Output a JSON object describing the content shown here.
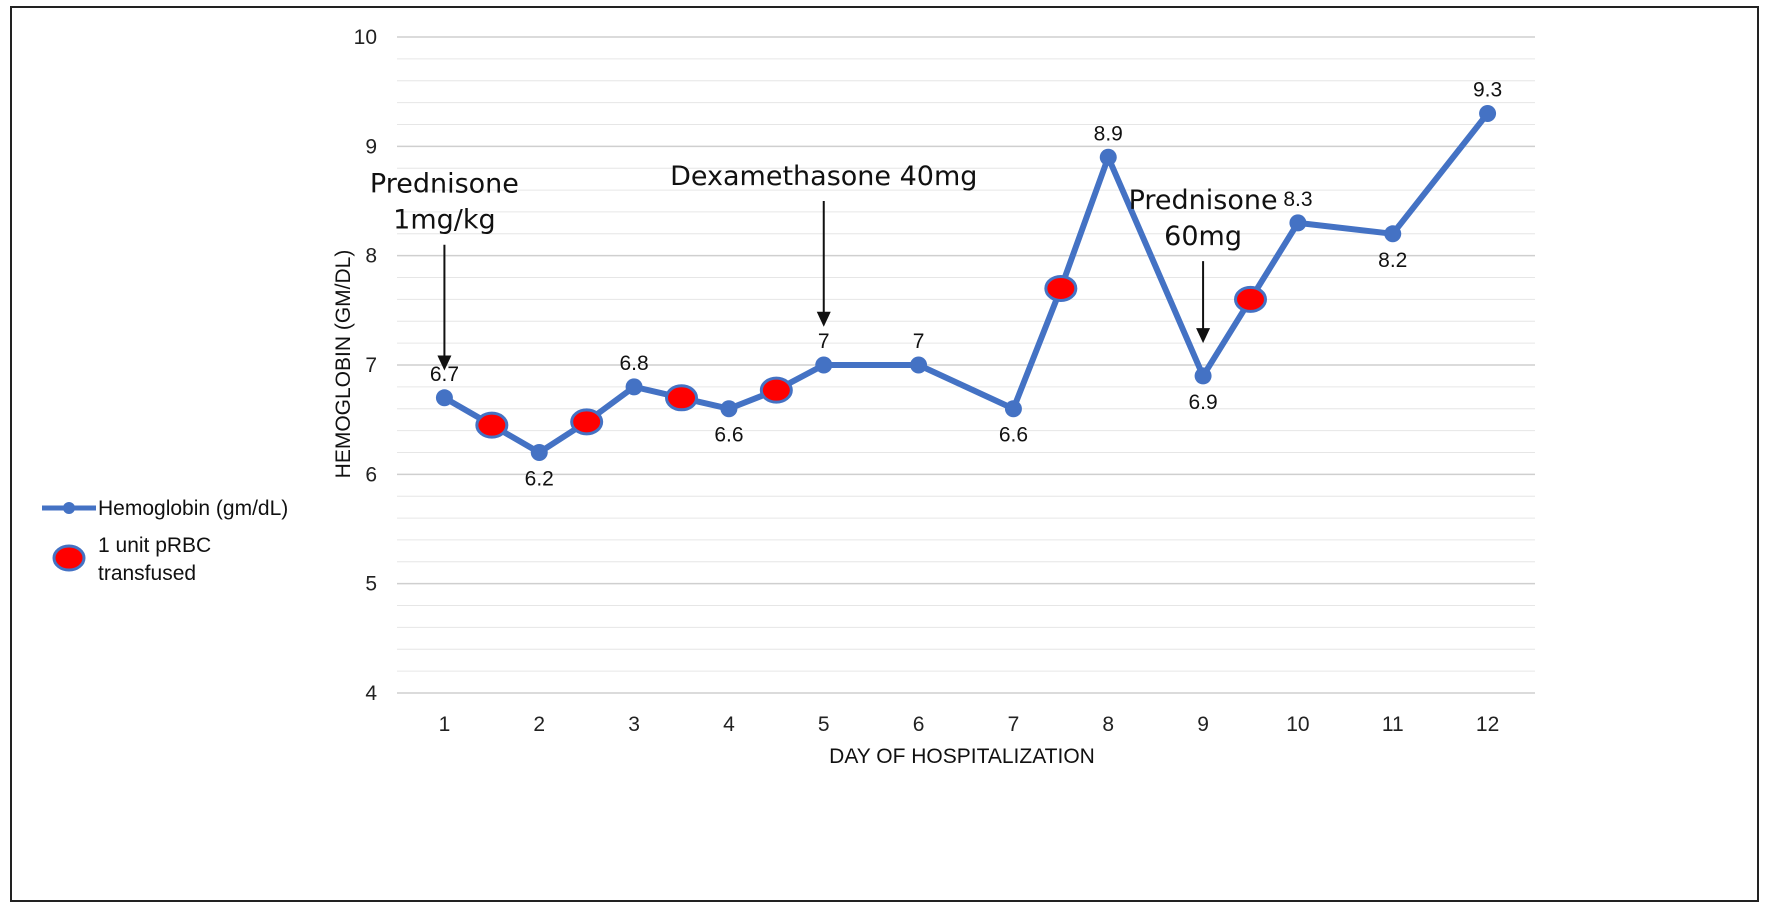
{
  "chart_data": {
    "type": "line",
    "xlabel": "DAY OF HOSPITALIZATION",
    "ylabel": "HEMOGLOBIN (GM/DL)",
    "x": [
      1,
      2,
      3,
      4,
      5,
      6,
      7,
      8,
      9,
      10,
      11,
      12
    ],
    "xlim": [
      0.5,
      12.5
    ],
    "ylim": [
      4,
      10
    ],
    "y_ticks": [
      4,
      5,
      6,
      7,
      8,
      9,
      10
    ],
    "y_minor_step": 0.2,
    "grid": true,
    "legend_position": "left",
    "series": [
      {
        "name": "Hemoglobin (gm/dL)",
        "color": "#4472C4",
        "points": [
          {
            "x": 1,
            "y": 6.7,
            "label": "6.7",
            "label_pos": "above"
          },
          {
            "x": 1.5,
            "y": 6.45,
            "transfusion": true
          },
          {
            "x": 2,
            "y": 6.2,
            "label": "6.2",
            "label_pos": "below"
          },
          {
            "x": 2.5,
            "y": 6.48,
            "transfusion": true
          },
          {
            "x": 3,
            "y": 6.8,
            "label": "6.8",
            "label_pos": "above"
          },
          {
            "x": 3.5,
            "y": 6.7,
            "transfusion": true
          },
          {
            "x": 4,
            "y": 6.6,
            "label": "6.6",
            "label_pos": "below"
          },
          {
            "x": 4.5,
            "y": 6.77,
            "transfusion": true
          },
          {
            "x": 5,
            "y": 7.0,
            "label": "7",
            "label_pos": "above"
          },
          {
            "x": 6,
            "y": 7.0,
            "label": "7",
            "label_pos": "above"
          },
          {
            "x": 7,
            "y": 6.6,
            "label": "6.6",
            "label_pos": "below"
          },
          {
            "x": 7.5,
            "y": 7.7,
            "transfusion": true
          },
          {
            "x": 8,
            "y": 8.9,
            "label": "8.9",
            "label_pos": "above"
          },
          {
            "x": 9,
            "y": 6.9,
            "label": "6.9",
            "label_pos": "below"
          },
          {
            "x": 9.5,
            "y": 7.6,
            "transfusion": true
          },
          {
            "x": 10,
            "y": 8.3,
            "label": "8.3",
            "label_pos": "above"
          },
          {
            "x": 11,
            "y": 8.2,
            "label": "8.2",
            "label_pos": "below"
          },
          {
            "x": 12,
            "y": 9.3,
            "label": "9.3",
            "label_pos": "above"
          }
        ]
      }
    ],
    "markers": {
      "transfusion_color": "#FF0000",
      "transfusion_outline": "#4472C4",
      "transfusion_legend": "1 unit pRBC transfused"
    },
    "annotations": [
      {
        "lines": [
          "Prednisone",
          "1mg/kg"
        ],
        "x": 1,
        "arrow_from_y": 8.1,
        "arrow_to_y": 6.95
      },
      {
        "lines": [
          "Dexamethasone 40mg"
        ],
        "x": 5,
        "arrow_from_y": 8.5,
        "arrow_to_y": 7.35
      },
      {
        "lines": [
          "Prednisone",
          "60mg"
        ],
        "x": 9,
        "arrow_from_y": 7.95,
        "arrow_to_y": 7.2
      }
    ]
  }
}
